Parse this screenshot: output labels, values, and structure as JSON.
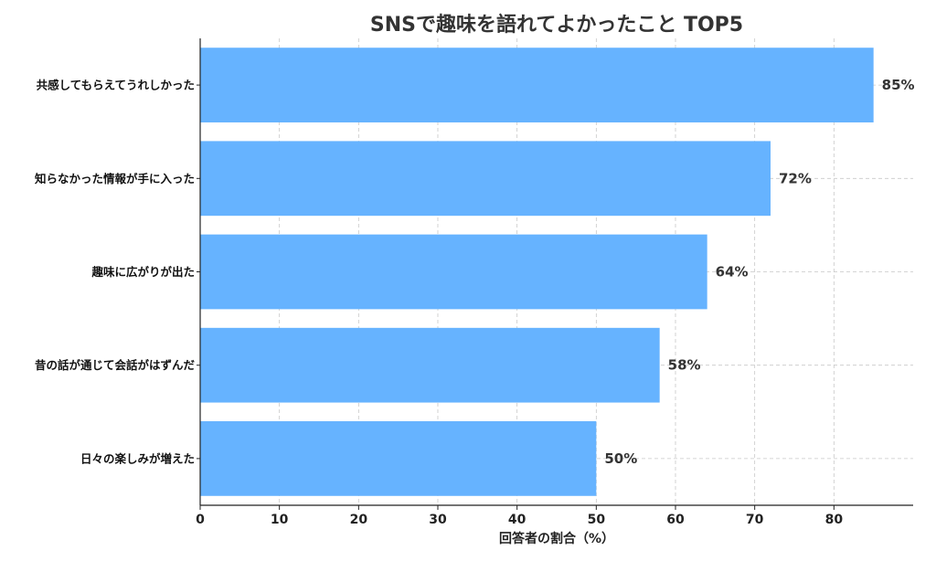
{
  "chart_data": {
    "type": "bar",
    "orientation": "horizontal",
    "title": "SNSで趣味を語れてよかったこと TOP5",
    "xlabel": "回答者の割合（%）",
    "ylabel": "",
    "categories": [
      "共感してもらえてうれしかった",
      "知らなかった情報が手に入った",
      "趣味に広がりが出た",
      "昔の話が通じて会話がはずんだ",
      "日々の楽しみが増えた"
    ],
    "values": [
      85,
      72,
      64,
      58,
      50
    ],
    "value_labels": [
      "85%",
      "72%",
      "64%",
      "58%",
      "50%"
    ],
    "xlim": [
      0,
      90
    ],
    "xticks": [
      0,
      10,
      20,
      30,
      40,
      50,
      60,
      70,
      80
    ],
    "grid": true,
    "bar_color": "#66b3ff"
  }
}
